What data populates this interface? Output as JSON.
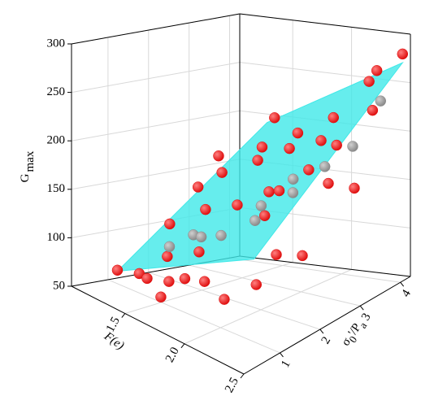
{
  "chart_data": {
    "type": "scatter3d",
    "xlabel": "F(e)",
    "ylabel": {
      "symbol": "σ",
      "sub1": "0",
      "mid": "'/P",
      "sub2": "a"
    },
    "zlabel": {
      "symbol": "G",
      "sub": "max"
    },
    "xlim": [
      1.05,
      2.5
    ],
    "xticks": [
      1.5,
      {
        "value": 2,
        "label": "2.0"
      },
      2.5
    ],
    "ylim": [
      0.1,
      4.25
    ],
    "yticks": [
      1,
      2,
      3,
      4
    ],
    "zlim": [
      50,
      300
    ],
    "zticks": [
      50,
      100,
      150,
      200,
      250,
      300
    ],
    "grid": true,
    "surface": {
      "color": "#40e8e8",
      "x": [
        1.3,
        2.45
      ],
      "y": [
        0.5,
        4.2
      ],
      "z": [
        [
          77,
          192
        ],
        [
          156,
          271
        ]
      ]
    },
    "series": [
      {
        "color": "#e01010",
        "x": [
          1.3,
          1.45,
          1.55,
          1.7,
          1.8,
          2.0,
          2.2,
          1.7,
          1.4,
          1.6,
          1.8,
          2.0,
          2.3,
          2.3,
          1.5,
          1.7,
          1.9,
          2.1,
          2.3,
          2.2,
          1.6,
          1.8,
          2.0,
          2.4,
          2.45,
          2.3,
          2.4,
          2.1,
          1.95,
          1.4,
          1.5,
          1.3,
          2.2,
          2.45,
          1.75,
          2.35,
          1.55
        ],
        "y": [
          0.5,
          0.6,
          0.5,
          0.6,
          0.7,
          0.6,
          0.5,
          0.4,
          1.5,
          1.8,
          2.0,
          2.2,
          1.0,
          1.5,
          2.5,
          2.8,
          3.0,
          3.2,
          3.0,
          2.6,
          3.2,
          3.5,
          3.8,
          3.6,
          4.2,
          4.0,
          2.5,
          1.8,
          2.6,
          2.2,
          3.8,
          3.0,
          4.1,
          3.0,
          1.2,
          2.0,
          1.0
        ],
        "z": [
          78,
          82,
          84,
          88,
          95,
          105,
          100,
          75,
          120,
          140,
          150,
          168,
          110,
          130,
          165,
          180,
          195,
          205,
          210,
          190,
          185,
          200,
          215,
          235,
          280,
          265,
          185,
          155,
          160,
          150,
          205,
          170,
          250,
          170,
          112,
          120,
          100
        ]
      },
      {
        "color": "#8a8a8a",
        "x": [
          1.5,
          1.6,
          1.7,
          1.8,
          1.9,
          2.0,
          2.1,
          2.2,
          2.3,
          2.4,
          1.95
        ],
        "y": [
          1.2,
          1.5,
          1.4,
          1.6,
          2.3,
          2.8,
          2.5,
          3.0,
          3.4,
          3.8,
          2.0
        ],
        "z": [
          105,
          118,
          122,
          125,
          148,
          170,
          165,
          185,
          200,
          240,
          140
        ]
      }
    ]
  }
}
